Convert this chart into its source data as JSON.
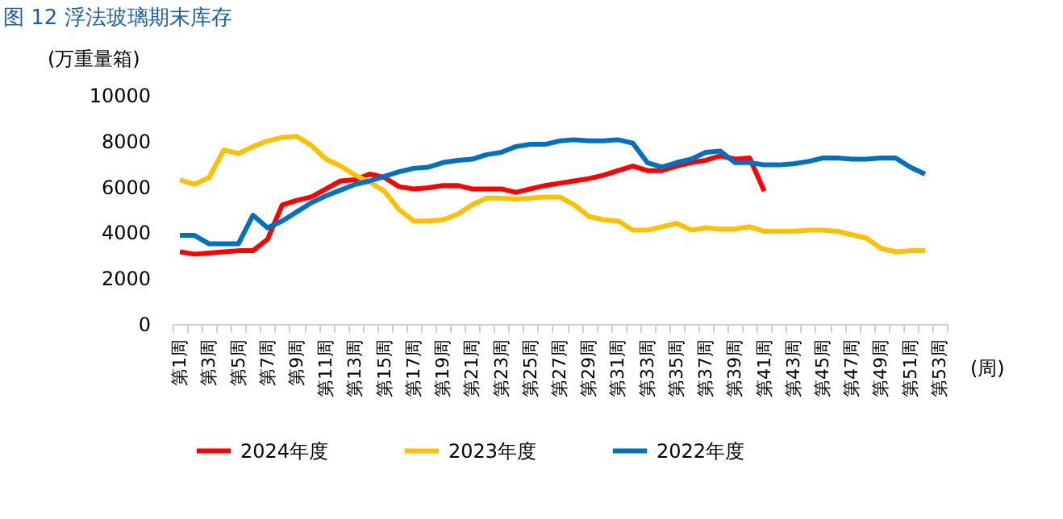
{
  "chart_data": {
    "type": "line",
    "title": "图 12  浮法玻璃期末库存",
    "ylabel": "(万重量箱)",
    "xlabel": "(周)",
    "categories": [
      "第1周",
      null,
      "第3周",
      null,
      "第5周",
      null,
      "第7周",
      null,
      "第9周",
      null,
      "第11周",
      null,
      "第13周",
      null,
      "第15周",
      null,
      "第17周",
      null,
      "第19周",
      null,
      "第21周",
      null,
      "第23周",
      null,
      "第25周",
      null,
      "第27周",
      null,
      "第29周",
      null,
      "第31周",
      null,
      "第33周",
      null,
      "第35周",
      null,
      "第37周",
      null,
      "第39周",
      null,
      "第41周",
      null,
      "第43周",
      null,
      "第45周",
      null,
      "第47周",
      null,
      "第49周",
      null,
      "第51周",
      null,
      "第53周"
    ],
    "series": [
      {
        "name": "2024年度",
        "color": "#ff0000",
        "values": [
          3150,
          3050,
          3100,
          3150,
          3200,
          3200,
          3700,
          5200,
          5400,
          5550,
          5900,
          6250,
          6300,
          6550,
          6400,
          6000,
          5900,
          5950,
          6050,
          6050,
          5900,
          5900,
          5900,
          5750,
          5900,
          6050,
          6150,
          6250,
          6350,
          6500,
          6700,
          6900,
          6700,
          6700,
          6900,
          7050,
          7150,
          7350,
          7200,
          7250,
          5800,
          null,
          null,
          null,
          null,
          null,
          null,
          null,
          null,
          null,
          null,
          null,
          null
        ]
      },
      {
        "name": "2023年度",
        "color": "#ffc000",
        "values": [
          6300,
          6100,
          6400,
          7600,
          7450,
          7750,
          8000,
          8150,
          8200,
          7800,
          7200,
          6900,
          6500,
          6200,
          5800,
          5000,
          4500,
          4500,
          4550,
          4800,
          5200,
          5500,
          5500,
          5450,
          5500,
          5550,
          5550,
          5200,
          4700,
          4550,
          4500,
          4100,
          4100,
          4250,
          4400,
          4100,
          4200,
          4150,
          4150,
          4250,
          4050,
          4050,
          4050,
          4100,
          4100,
          4050,
          3900,
          3750,
          3300,
          3150,
          3200,
          3200,
          null
        ]
      },
      {
        "name": "2022年度",
        "color": "#0070c0",
        "values": [
          3870,
          3870,
          3500,
          3500,
          3500,
          4750,
          4200,
          4500,
          4900,
          5300,
          5600,
          5850,
          6100,
          6250,
          6450,
          6650,
          6800,
          6850,
          7050,
          7150,
          7200,
          7400,
          7500,
          7750,
          7850,
          7850,
          8000,
          8050,
          8000,
          8000,
          8050,
          7900,
          7050,
          6850,
          7050,
          7200,
          7500,
          7550,
          7050,
          7050,
          6950,
          6950,
          7000,
          7100,
          7250,
          7250,
          7200,
          7200,
          7250,
          7250,
          6850,
          6550,
          null
        ]
      }
    ],
    "ylim": [
      0,
      10000
    ],
    "yticks": [
      0,
      2000,
      4000,
      6000,
      8000,
      10000
    ],
    "legend": "bottom"
  }
}
